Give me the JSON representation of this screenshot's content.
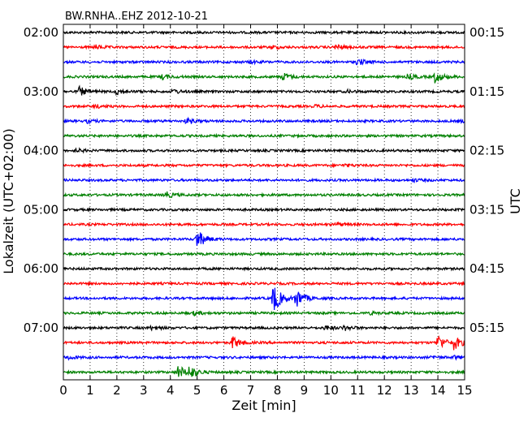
{
  "chart_data": {
    "type": "line",
    "title": "BW.RNHA..EHZ 2012-10-21",
    "xlabel": "Zeit  [min]",
    "ylabel_left": "Lokalzeit (UTC+02:00)",
    "ylabel_right": "UTC",
    "xlim": [
      0,
      15
    ],
    "x_ticks": [
      "0",
      "1",
      "2",
      "3",
      "4",
      "5",
      "6",
      "7",
      "8",
      "9",
      "10",
      "11",
      "12",
      "13",
      "14",
      "15"
    ],
    "left_tick_labels": [
      "02:00",
      "03:00",
      "04:00",
      "05:00",
      "06:00",
      "07:00"
    ],
    "right_tick_labels": [
      "00:15",
      "01:15",
      "02:15",
      "03:15",
      "04:15",
      "05:15"
    ],
    "grid": "vertical-dotted",
    "trace_minutes_per_line": 15,
    "start_local_time": "02:00",
    "trace_colors": [
      "#000000",
      "#ff0000",
      "#0000ff",
      "#008000"
    ],
    "traces": [
      {
        "local_time": "02:00",
        "events": []
      },
      {
        "local_time": "02:15",
        "events": [
          {
            "t": 1.2,
            "amp": 0.25
          },
          {
            "t": 7.8,
            "amp": 0.2
          },
          {
            "t": 10.2,
            "amp": 0.35
          }
        ]
      },
      {
        "local_time": "02:30",
        "events": [
          {
            "t": 7.0,
            "amp": 0.15
          },
          {
            "t": 11.0,
            "amp": 0.45
          }
        ]
      },
      {
        "local_time": "02:45",
        "events": [
          {
            "t": 3.7,
            "amp": 0.3
          },
          {
            "t": 8.2,
            "amp": 0.55
          },
          {
            "t": 12.9,
            "amp": 0.35
          },
          {
            "t": 13.9,
            "amp": 0.8
          }
        ]
      },
      {
        "local_time": "03:00",
        "events": [
          {
            "t": 0.6,
            "amp": 0.6
          },
          {
            "t": 2.0,
            "amp": 0.4
          },
          {
            "t": 4.1,
            "amp": 0.3
          },
          {
            "t": 10.6,
            "amp": 0.15
          }
        ]
      },
      {
        "local_time": "03:15",
        "events": [
          {
            "t": 1.2,
            "amp": 0.2
          },
          {
            "t": 9.4,
            "amp": 0.15
          }
        ]
      },
      {
        "local_time": "03:30",
        "events": [
          {
            "t": 0.9,
            "amp": 0.2
          },
          {
            "t": 4.6,
            "amp": 0.35
          },
          {
            "t": 14.8,
            "amp": 0.15
          }
        ]
      },
      {
        "local_time": "03:45",
        "events": []
      },
      {
        "local_time": "04:00",
        "events": [
          {
            "t": 0.5,
            "amp": 0.2
          }
        ]
      },
      {
        "local_time": "04:15",
        "events": [
          {
            "t": 10.5,
            "amp": 0.15
          }
        ]
      },
      {
        "local_time": "04:30",
        "events": [
          {
            "t": 13.1,
            "amp": 0.15
          }
        ]
      },
      {
        "local_time": "04:45",
        "events": [
          {
            "t": 3.8,
            "amp": 0.45
          }
        ]
      },
      {
        "local_time": "05:00",
        "events": []
      },
      {
        "local_time": "05:15",
        "events": [
          {
            "t": 10.2,
            "amp": 0.25
          }
        ]
      },
      {
        "local_time": "05:30",
        "events": [
          {
            "t": 5.0,
            "amp": 1.3
          }
        ]
      },
      {
        "local_time": "05:45",
        "events": []
      },
      {
        "local_time": "06:00",
        "events": []
      },
      {
        "local_time": "06:15",
        "events": []
      },
      {
        "local_time": "06:30",
        "events": [
          {
            "t": 7.85,
            "amp": 2.0
          },
          {
            "t": 8.7,
            "amp": 1.3
          }
        ]
      },
      {
        "local_time": "06:45",
        "events": [
          {
            "t": 4.9,
            "amp": 0.25
          },
          {
            "t": 11.5,
            "amp": 0.15
          }
        ]
      },
      {
        "local_time": "07:00",
        "events": [
          {
            "t": 3.3,
            "amp": 0.25
          },
          {
            "t": 9.8,
            "amp": 0.3
          },
          {
            "t": 10.5,
            "amp": 0.3
          }
        ]
      },
      {
        "local_time": "07:15",
        "events": [
          {
            "t": 6.3,
            "amp": 0.9
          },
          {
            "t": 14.0,
            "amp": 1.0
          },
          {
            "t": 14.6,
            "amp": 0.9
          }
        ]
      },
      {
        "local_time": "07:30",
        "events": [
          {
            "t": 0.2,
            "amp": 0.2
          },
          {
            "t": 13.8,
            "amp": 0.2
          },
          {
            "t": 14.6,
            "amp": 0.2
          }
        ]
      },
      {
        "local_time": "07:45",
        "events": [
          {
            "t": 4.3,
            "amp": 0.9
          },
          {
            "t": 4.7,
            "amp": 0.8
          }
        ]
      }
    ]
  }
}
